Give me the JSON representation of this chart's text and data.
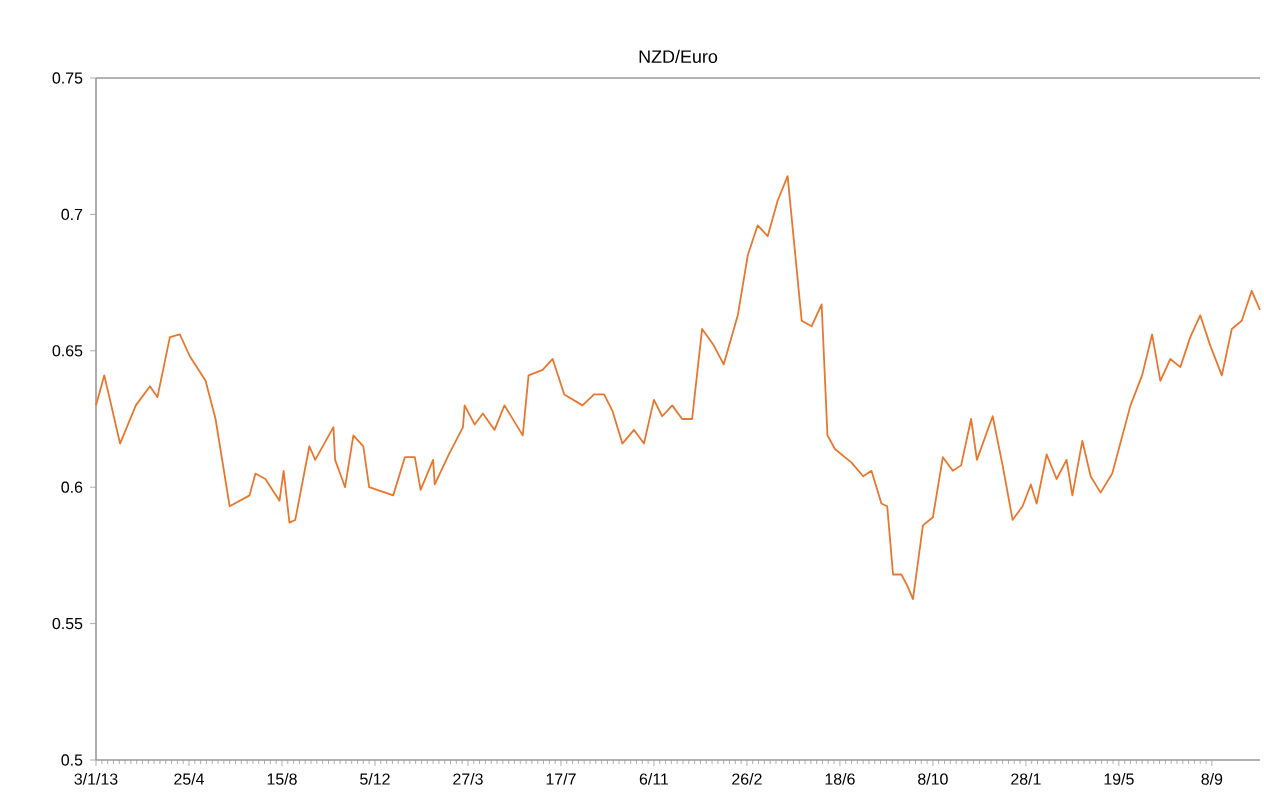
{
  "chart_data": {
    "type": "line",
    "title": "NZD/Euro",
    "x": [
      "2013-01-03",
      "2013-01-13",
      "2013-02-01",
      "2013-02-20",
      "2013-03-09",
      "2013-03-18",
      "2013-04-02",
      "2013-04-14",
      "2013-04-26",
      "2013-05-15",
      "2013-05-27",
      "2013-06-13",
      "2013-07-07",
      "2013-07-14",
      "2013-07-26",
      "2013-08-12",
      "2013-08-17",
      "2013-08-24",
      "2013-08-31",
      "2013-09-17",
      "2013-09-24",
      "2013-10-16",
      "2013-10-18",
      "2013-10-30",
      "2013-11-09",
      "2013-11-21",
      "2013-11-28",
      "2013-12-27",
      "2014-01-10",
      "2014-01-22",
      "2014-01-29",
      "2014-02-13",
      "2014-02-15",
      "2014-03-04",
      "2014-03-21",
      "2014-03-23",
      "2014-04-04",
      "2014-04-14",
      "2014-04-28",
      "2014-05-10",
      "2014-06-01",
      "2014-06-08",
      "2014-06-25",
      "2014-07-07",
      "2014-07-21",
      "2014-08-12",
      "2014-08-26",
      "2014-09-07",
      "2014-09-17",
      "2014-09-29",
      "2014-10-13",
      "2014-10-25",
      "2014-11-06",
      "2014-11-16",
      "2014-11-28",
      "2014-12-10",
      "2014-12-22",
      "2015-01-03",
      "2015-01-17",
      "2015-01-29",
      "2015-02-15",
      "2015-02-27",
      "2015-03-11",
      "2015-03-23",
      "2015-04-04",
      "2015-04-16",
      "2015-05-03",
      "2015-05-15",
      "2015-05-27",
      "2015-06-03",
      "2015-06-12",
      "2015-07-02",
      "2015-07-16",
      "2015-07-26",
      "2015-08-07",
      "2015-08-14",
      "2015-08-21",
      "2015-08-31",
      "2015-09-07",
      "2015-09-14",
      "2015-09-26",
      "2015-10-08",
      "2015-10-20",
      "2015-11-01",
      "2015-11-11",
      "2015-11-23",
      "2015-11-30",
      "2015-12-19",
      "2015-12-31",
      "2016-01-12",
      "2016-01-24",
      "2016-02-03",
      "2016-02-10",
      "2016-02-22",
      "2016-03-05",
      "2016-03-17",
      "2016-03-24",
      "2016-04-05",
      "2016-04-15",
      "2016-04-27",
      "2016-05-11",
      "2016-06-02",
      "2016-06-16",
      "2016-06-28",
      "2016-07-08",
      "2016-07-20",
      "2016-08-01",
      "2016-08-13",
      "2016-08-25",
      "2016-09-06",
      "2016-09-20",
      "2016-10-02",
      "2016-10-14",
      "2016-10-26",
      "2016-11-05"
    ],
    "series": [
      {
        "color": "#e8772e",
        "values": [
          0.63,
          0.641,
          0.616,
          0.63,
          0.637,
          0.633,
          0.655,
          0.656,
          0.648,
          0.639,
          0.625,
          0.593,
          0.597,
          0.605,
          0.603,
          0.595,
          0.606,
          0.587,
          0.588,
          0.615,
          0.61,
          0.622,
          0.61,
          0.6,
          0.619,
          0.615,
          0.6,
          0.597,
          0.611,
          0.611,
          0.599,
          0.61,
          0.601,
          0.612,
          0.622,
          0.63,
          0.623,
          0.627,
          0.621,
          0.63,
          0.619,
          0.641,
          0.643,
          0.647,
          0.634,
          0.63,
          0.634,
          0.634,
          0.628,
          0.616,
          0.621,
          0.616,
          0.632,
          0.626,
          0.63,
          0.625,
          0.625,
          0.658,
          0.652,
          0.645,
          0.663,
          0.685,
          0.696,
          0.692,
          0.705,
          0.714,
          0.661,
          0.659,
          0.667,
          0.619,
          0.614,
          0.609,
          0.604,
          0.606,
          0.594,
          0.593,
          0.568,
          0.568,
          0.564,
          0.559,
          0.586,
          0.589,
          0.611,
          0.606,
          0.608,
          0.625,
          0.61,
          0.626,
          0.608,
          0.588,
          0.593,
          0.601,
          0.594,
          0.612,
          0.603,
          0.61,
          0.597,
          0.617,
          0.604,
          0.598,
          0.605,
          0.63,
          0.641,
          0.656,
          0.639,
          0.647,
          0.644,
          0.655,
          0.663,
          0.652,
          0.641,
          0.658,
          0.661,
          0.672,
          0.665
        ]
      }
    ],
    "xlim": [
      "2013-01-03",
      "2016-11-05"
    ],
    "xticks": [
      {
        "value": "2013-01-03",
        "label": "3/1/13"
      },
      {
        "value": "2013-04-25",
        "label": "25/4"
      },
      {
        "value": "2013-08-15",
        "label": "15/8"
      },
      {
        "value": "2013-12-05",
        "label": "5/12"
      },
      {
        "value": "2014-03-27",
        "label": "27/3"
      },
      {
        "value": "2014-07-17",
        "label": "17/7"
      },
      {
        "value": "2014-11-06",
        "label": "6/11"
      },
      {
        "value": "2015-02-26",
        "label": "26/2"
      },
      {
        "value": "2015-06-18",
        "label": "18/6"
      },
      {
        "value": "2015-10-08",
        "label": "8/10"
      },
      {
        "value": "2016-01-28",
        "label": "28/1"
      },
      {
        "value": "2016-05-19",
        "label": "19/5"
      },
      {
        "value": "2016-09-08",
        "label": "8/9"
      }
    ],
    "ylim": [
      0.5,
      0.75
    ],
    "yticks": [
      0.5,
      0.55,
      0.6,
      0.65,
      0.7,
      0.75
    ],
    "grid": false,
    "marker": "none",
    "line_style": "solid"
  }
}
